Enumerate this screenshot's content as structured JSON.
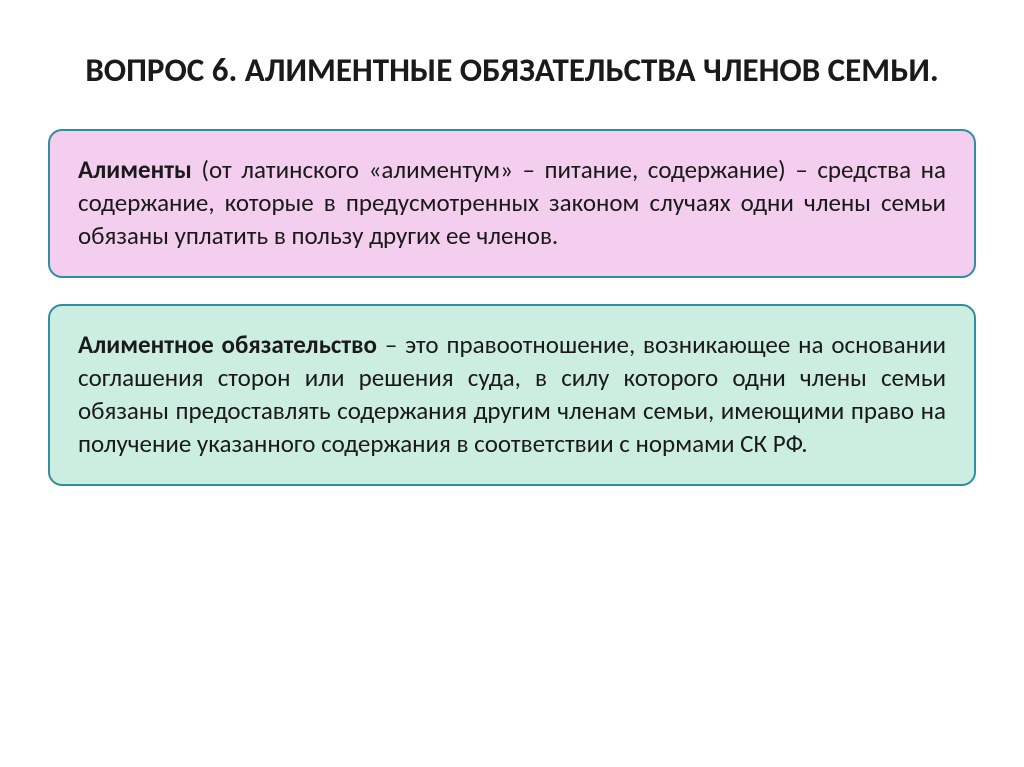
{
  "title_fontsize": 33,
  "body_fontsize": 25,
  "colors": {
    "background": "#ffffff",
    "text": "#1a1a1a",
    "pink_fill": "#f3ceee",
    "green_fill": "#cceee1",
    "border": "#2f8ea0"
  },
  "title": "ВОПРОС 6. АЛИМЕНТНЫЕ ОБЯЗАТЕЛЬСТВА ЧЛЕНОВ СЕМЬИ.",
  "box1": {
    "term": "Алименты",
    "rest": " (от латинского «алиментум» – питание, содержание) – средства на содержание, которые в предусмотренных законом случаях одни члены семьи обязаны уплатить в пользу других ее членов."
  },
  "box2": {
    "term": "Алиментное обязательство",
    "rest": " – это правоотношение, возникающее на основании соглашения сторон или решения суда, в силу которого одни члены семьи обязаны предоставлять содержания другим членам семьи, имеющими право на получение указанного содержания в соответствии с нормами СК РФ."
  }
}
